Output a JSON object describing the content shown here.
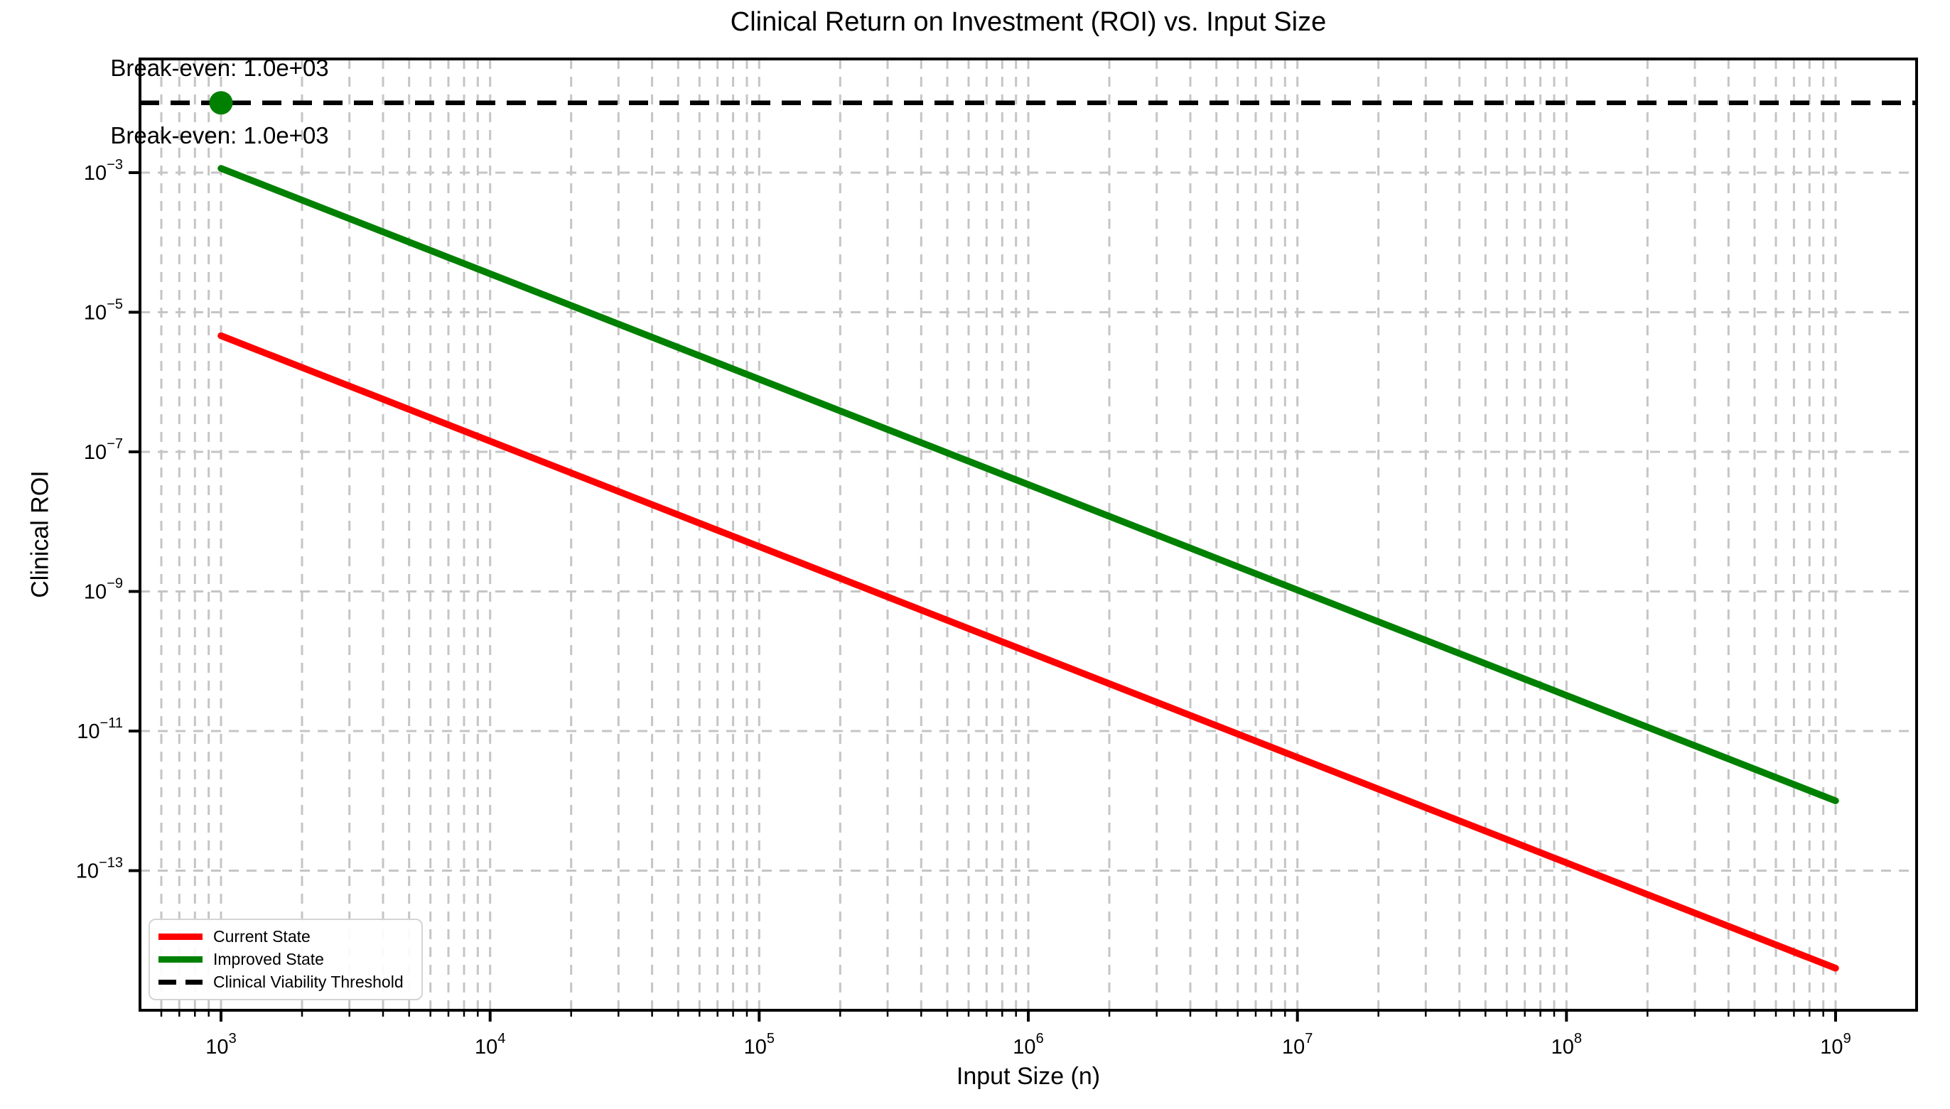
{
  "chart": {
    "title": "Clinical Return on Investment (ROI) vs. Input Size",
    "xlabel": "Input Size (n)",
    "ylabel": "Clinical ROI"
  },
  "annotations": [
    {
      "text": "Break-even: 1.0e+03",
      "x": 1000,
      "position": "above-threshold"
    },
    {
      "text": "Break-even: 1.0e+03",
      "x": 1000,
      "position": "below-threshold"
    }
  ],
  "legend": {
    "items": [
      {
        "label": "Current State",
        "color": "#ff0000",
        "style": "solid"
      },
      {
        "label": "Improved State",
        "color": "#008000",
        "style": "solid"
      },
      {
        "label": "Clinical Viability Threshold",
        "color": "#000000",
        "style": "dashed"
      }
    ]
  },
  "chart_data": {
    "type": "line",
    "title": "Clinical Return on Investment (ROI) vs. Input Size",
    "xlabel": "Input Size (n)",
    "ylabel": "Clinical ROI",
    "x_scale": "log",
    "y_scale": "log",
    "xlim": [
      500,
      2000000000
    ],
    "ylim": [
      1e-15,
      0.0425
    ],
    "x_ticks_exponents": [
      3,
      4,
      5,
      6,
      7,
      8,
      9
    ],
    "y_ticks_exponents": [
      -3,
      -5,
      -7,
      -9,
      -11,
      -13
    ],
    "grid": true,
    "legend_position": "lower left",
    "series": [
      {
        "name": "Current State",
        "color": "#ff0000",
        "points": [
          [
            1000,
            4.6e-06
          ],
          [
            1000000000,
            4e-15
          ]
        ]
      },
      {
        "name": "Improved State",
        "color": "#008000",
        "points": [
          [
            1000,
            0.00115
          ],
          [
            1000000000,
            1e-12
          ]
        ]
      }
    ],
    "threshold": {
      "name": "Clinical Viability Threshold",
      "value": 0.01,
      "color": "#000000"
    },
    "break_even_marker": {
      "x": 1000,
      "y": 0.01,
      "color": "#008000"
    }
  }
}
